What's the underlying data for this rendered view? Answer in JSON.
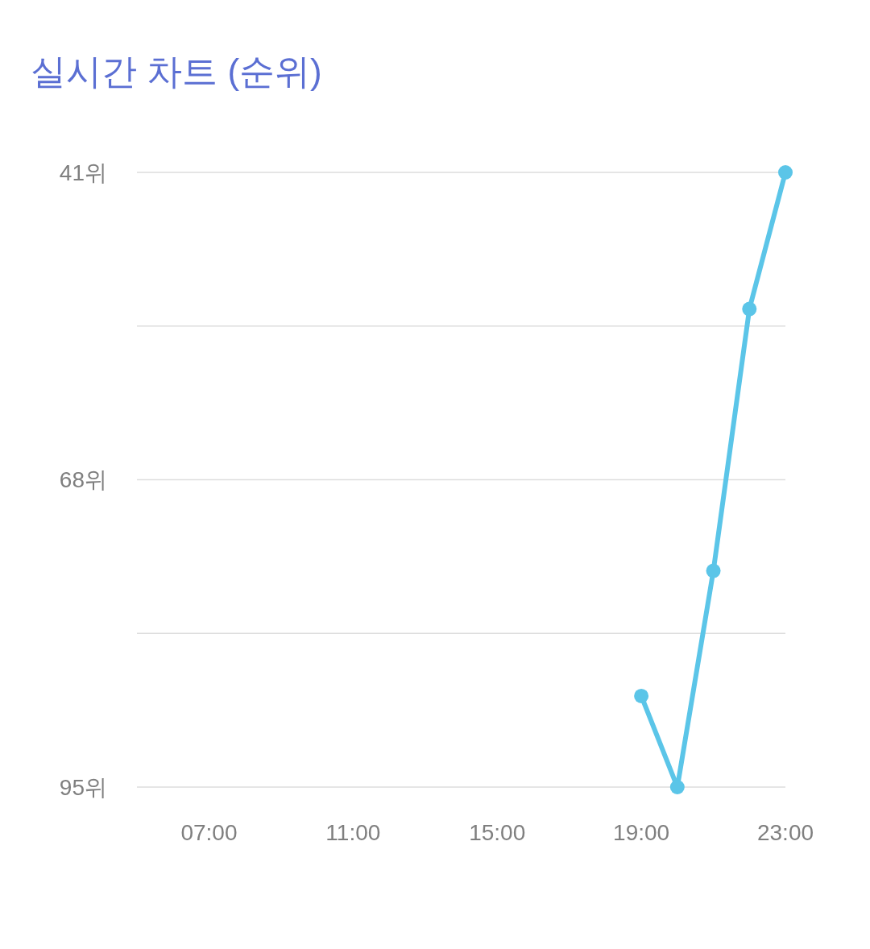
{
  "chart_data": {
    "type": "line",
    "title": "실시간 차트 (순위)",
    "x": [
      19,
      20,
      21,
      22,
      23
    ],
    "series": [
      {
        "color": "#5bc5e8",
        "values": [
          87,
          95,
          76,
          53,
          41
        ]
      }
    ],
    "xlim": [
      5,
      23
    ],
    "xticks": [
      {
        "value": 7,
        "label": "07:00"
      },
      {
        "value": 11,
        "label": "11:00"
      },
      {
        "value": 15,
        "label": "15:00"
      },
      {
        "value": 19,
        "label": "19:00"
      },
      {
        "value": 23,
        "label": "23:00"
      }
    ],
    "ylim": [
      95,
      41
    ],
    "yticks": [
      {
        "value": 41,
        "label": "41위"
      },
      {
        "value": 54.5,
        "label": null
      },
      {
        "value": 68,
        "label": "68위"
      },
      {
        "value": 81.5,
        "label": null
      },
      {
        "value": 95,
        "label": "95위"
      }
    ],
    "grid": "y",
    "marker": "circle",
    "line_style": "solid"
  }
}
